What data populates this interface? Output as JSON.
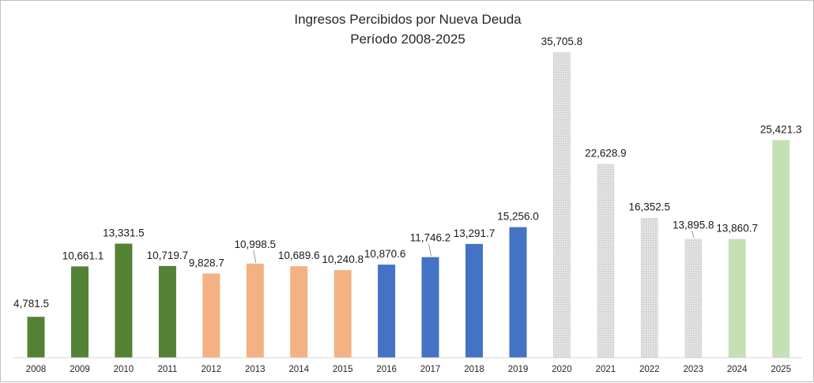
{
  "chart_data": {
    "type": "bar",
    "title": "Ingresos Percibidos por Nueva Deuda",
    "subtitle": "Período 2008-2025",
    "xlabel": "",
    "ylabel": "",
    "ylim": [
      0,
      38000
    ],
    "grid": false,
    "legend": "none",
    "categories": [
      "2008",
      "2009",
      "2010",
      "2011",
      "2012",
      "2013",
      "2014",
      "2015",
      "2016",
      "2017",
      "2018",
      "2019",
      "2020",
      "2021",
      "2022",
      "2023",
      "2024",
      "2025"
    ],
    "values": [
      4781.5,
      10661.1,
      13331.5,
      10719.7,
      9828.7,
      10998.5,
      10689.6,
      10240.8,
      10870.6,
      11746.2,
      13291.7,
      15256.0,
      35705.8,
      22628.9,
      16352.5,
      13895.8,
      13860.7,
      25421.3
    ],
    "value_labels": [
      "4,781.5",
      "10,661.1",
      "13,331.5",
      "10,719.7",
      "9,828.7",
      "10,998.5",
      "10,689.6",
      "10,240.8",
      "10,870.6",
      "11,746.2",
      "13,291.7",
      "15,256.0",
      "35,705.8",
      "22,628.9",
      "16,352.5",
      "13,895.8",
      "13,860.7",
      "25,421.3"
    ],
    "colors": [
      "#548235",
      "#548235",
      "#548235",
      "#548235",
      "#f4b183",
      "#f4b183",
      "#f4b183",
      "#f4b183",
      "#4472c4",
      "#4472c4",
      "#4472c4",
      "#4472c4",
      "#d9d9d9",
      "#d9d9d9",
      "#d9d9d9",
      "#d9d9d9",
      "#c5e0b4",
      "#c5e0b4"
    ],
    "patterns": [
      "solid",
      "solid",
      "solid",
      "solid",
      "solid",
      "solid",
      "solid",
      "solid",
      "solid",
      "solid",
      "solid",
      "solid",
      "dotted",
      "dotted",
      "dotted",
      "dotted",
      "solid",
      "solid"
    ],
    "axis_color": "#d9d9d9"
  }
}
